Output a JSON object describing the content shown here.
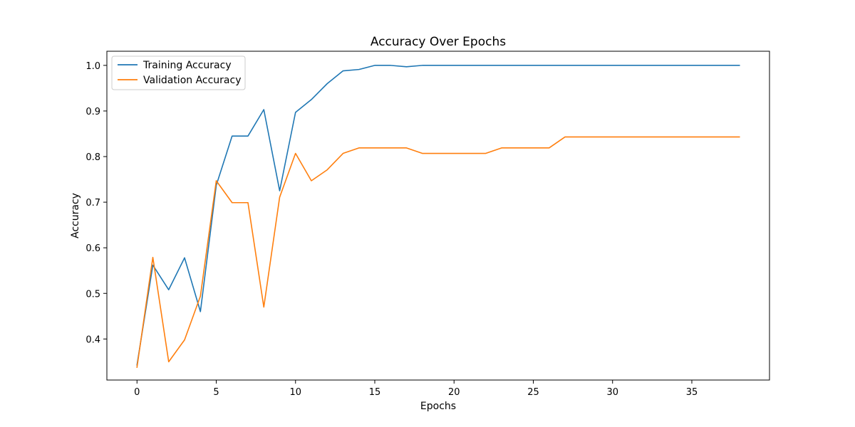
{
  "chart_data": {
    "type": "line",
    "title": "Accuracy Over Epochs",
    "xlabel": "Epochs",
    "ylabel": "Accuracy",
    "xlim": [
      -1.9,
      39.9
    ],
    "ylim": [
      0.31,
      1.031
    ],
    "xticks": [
      0,
      5,
      10,
      15,
      20,
      25,
      30,
      35
    ],
    "yticks": [
      0.4,
      0.5,
      0.6,
      0.7,
      0.8,
      0.9,
      1.0
    ],
    "ytick_labels": [
      "0.4",
      "0.5",
      "0.6",
      "0.7",
      "0.8",
      "0.9",
      "1.0"
    ],
    "grid": false,
    "legend_position": "top-left",
    "x": [
      0,
      1,
      2,
      3,
      4,
      5,
      6,
      7,
      8,
      9,
      10,
      11,
      12,
      13,
      14,
      15,
      16,
      17,
      18,
      19,
      20,
      21,
      22,
      23,
      24,
      25,
      26,
      27,
      28,
      29,
      30,
      31,
      32,
      33,
      34,
      35,
      36,
      37,
      38
    ],
    "series": [
      {
        "name": "Training Accuracy",
        "color": "#1f77b4",
        "values": [
          0.343,
          0.562,
          0.508,
          0.578,
          0.46,
          0.737,
          0.845,
          0.845,
          0.903,
          0.725,
          0.897,
          0.925,
          0.96,
          0.988,
          0.991,
          1.0,
          1.0,
          0.997,
          1.0,
          1.0,
          1.0,
          1.0,
          1.0,
          1.0,
          1.0,
          1.0,
          1.0,
          1.0,
          1.0,
          1.0,
          1.0,
          1.0,
          1.0,
          1.0,
          1.0,
          1.0,
          1.0,
          1.0,
          1.0
        ]
      },
      {
        "name": "Validation Accuracy",
        "color": "#ff7f0e",
        "values": [
          0.338,
          0.579,
          0.35,
          0.398,
          0.494,
          0.747,
          0.699,
          0.699,
          0.47,
          0.711,
          0.807,
          0.747,
          0.771,
          0.807,
          0.819,
          0.819,
          0.819,
          0.819,
          0.807,
          0.807,
          0.807,
          0.807,
          0.807,
          0.819,
          0.819,
          0.819,
          0.819,
          0.843,
          0.843,
          0.843,
          0.843,
          0.843,
          0.843,
          0.843,
          0.843,
          0.843,
          0.843,
          0.843,
          0.843
        ]
      }
    ]
  }
}
